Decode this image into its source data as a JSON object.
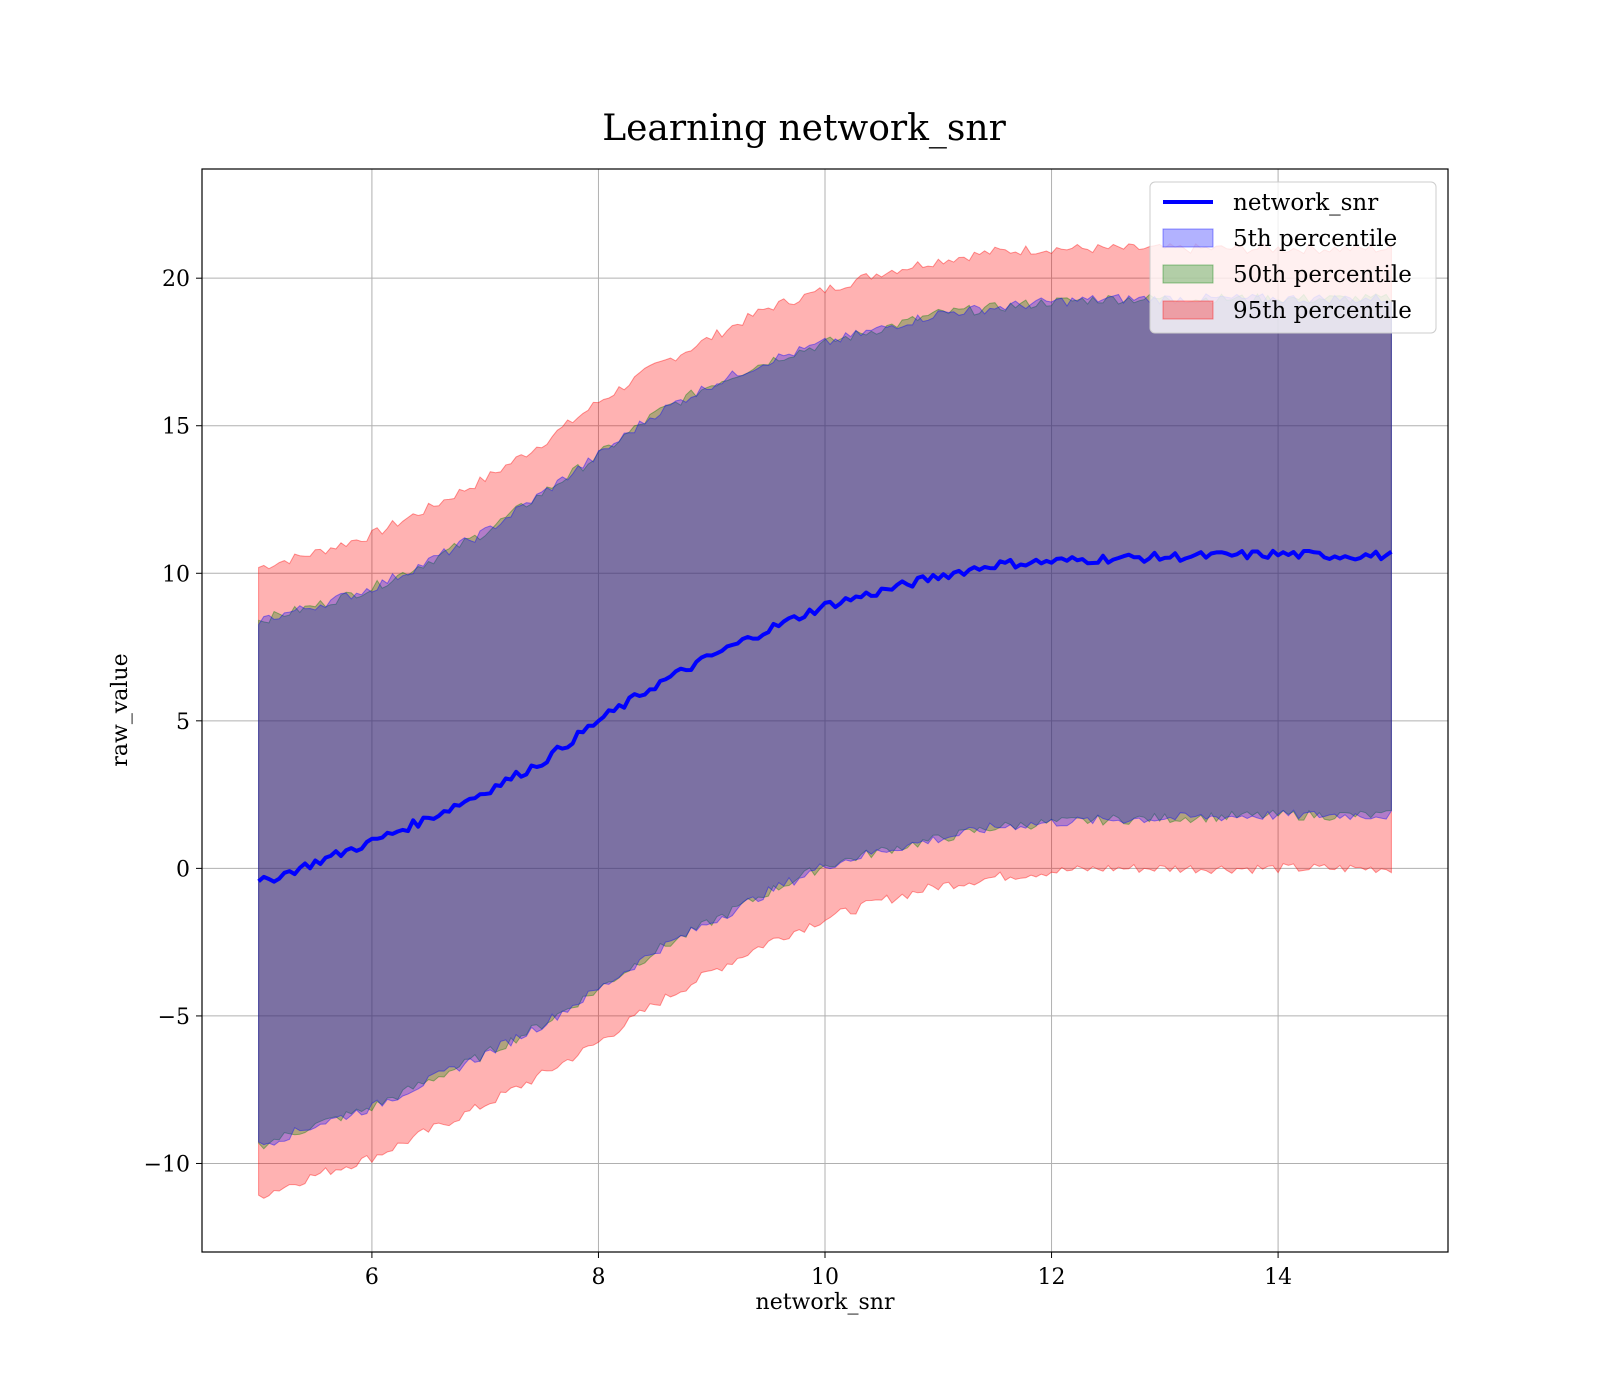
{
  "chart_data": {
    "type": "area",
    "title": "Learning network_snr",
    "xlabel": "network_snr",
    "ylabel": "raw_value",
    "xlim": [
      4.5,
      15.5
    ],
    "ylim": [
      -13,
      23.7
    ],
    "x_ticks": [
      6,
      8,
      10,
      12,
      14
    ],
    "x_tick_labels": [
      "6",
      "8",
      "10",
      "12",
      "14"
    ],
    "y_ticks": [
      -10,
      -5,
      0,
      5,
      10,
      15,
      20
    ],
    "y_tick_labels": [
      "−10",
      "−5",
      "0",
      "5",
      "10",
      "15",
      "20"
    ],
    "grid": true,
    "legend_position": "top-right",
    "x": [
      5,
      5.5,
      6,
      6.5,
      7,
      7.5,
      8,
      8.5,
      9,
      9.5,
      10,
      10.5,
      11,
      11.5,
      12,
      12.5,
      13,
      13.5,
      14,
      14.5,
      15
    ],
    "series": [
      {
        "name": "network_snr",
        "kind": "line",
        "color": "#0000ff",
        "values": [
          -0.5,
          0.2,
          0.9,
          1.7,
          2.6,
          3.6,
          5.0,
          6.2,
          7.2,
          8.1,
          8.9,
          9.4,
          9.9,
          10.3,
          10.4,
          10.5,
          10.55,
          10.6,
          10.65,
          10.6,
          10.6
        ]
      },
      {
        "name": "5th percentile",
        "kind": "band",
        "color": "#0000ff",
        "lower": [
          -9.4,
          -8.7,
          -8.1,
          -7.2,
          -6.3,
          -5.3,
          -4.1,
          -2.8,
          -1.8,
          -0.8,
          0.1,
          0.6,
          1.0,
          1.4,
          1.55,
          1.65,
          1.7,
          1.75,
          1.8,
          1.8,
          1.8
        ],
        "upper": [
          8.4,
          8.9,
          9.5,
          10.4,
          11.4,
          12.7,
          14.0,
          15.4,
          16.4,
          17.2,
          17.8,
          18.3,
          18.8,
          19.0,
          19.2,
          19.3,
          19.3,
          19.3,
          19.3,
          19.3,
          19.3
        ]
      },
      {
        "name": "50th percentile",
        "kind": "band",
        "color": "#008000",
        "lower": [
          -9.4,
          -8.7,
          -8.1,
          -7.2,
          -6.3,
          -5.3,
          -4.1,
          -2.8,
          -1.8,
          -0.8,
          0.1,
          0.6,
          1.0,
          1.4,
          1.55,
          1.65,
          1.7,
          1.75,
          1.8,
          1.8,
          1.8
        ],
        "upper": [
          8.4,
          8.9,
          9.5,
          10.4,
          11.4,
          12.7,
          14.0,
          15.4,
          16.4,
          17.2,
          17.8,
          18.3,
          18.8,
          19.0,
          19.2,
          19.3,
          19.3,
          19.3,
          19.3,
          19.3,
          19.3
        ]
      },
      {
        "name": "95th percentile",
        "kind": "band",
        "color": "#ff0000",
        "lower": [
          -11.1,
          -10.4,
          -9.8,
          -8.9,
          -8.0,
          -7.0,
          -5.9,
          -4.6,
          -3.5,
          -2.5,
          -1.7,
          -1.1,
          -0.6,
          -0.3,
          -0.1,
          0.0,
          0.0,
          0.0,
          0.0,
          0.0,
          0.0
        ],
        "upper": [
          10.2,
          10.7,
          11.3,
          12.2,
          13.2,
          14.4,
          15.8,
          17.0,
          18.0,
          19.0,
          19.6,
          20.2,
          20.6,
          20.9,
          21.0,
          21.0,
          21.0,
          21.0,
          21.0,
          21.0,
          21.0
        ]
      }
    ]
  }
}
